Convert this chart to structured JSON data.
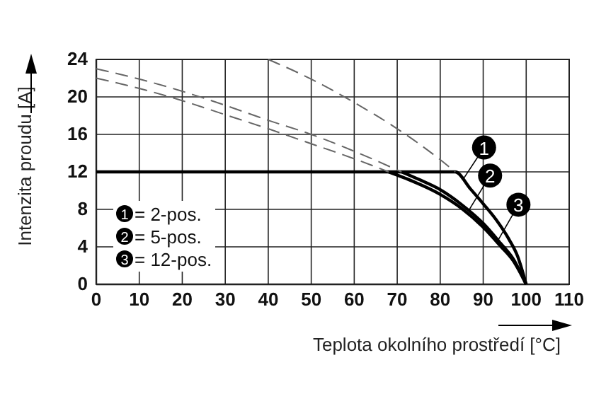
{
  "chart_data": {
    "type": "line",
    "xlabel": "Teplota okolního prostředí [°C]",
    "ylabel": "Intenzita proudu [A]",
    "xlim": [
      0,
      110
    ],
    "xticks": [
      0,
      10,
      20,
      30,
      40,
      50,
      60,
      70,
      80,
      90,
      100,
      110
    ],
    "ylim": [
      0,
      24
    ],
    "yticks": [
      0,
      4,
      8,
      12,
      16,
      20,
      24
    ],
    "grid": true,
    "legend": "bottom left",
    "series": [
      {
        "name": "= 2-pos.",
        "color": "#000000",
        "line_style": "solid",
        "x": [
          0,
          83.5,
          87,
          90,
          93,
          96,
          98,
          100
        ],
        "values": [
          12,
          12,
          10.2,
          8.6,
          6.9,
          4.8,
          3.0,
          0
        ]
      },
      {
        "name": "= 5-pos.",
        "color": "#000000",
        "line_style": "solid",
        "x": [
          71,
          75,
          80,
          85,
          90,
          94,
          97,
          100
        ],
        "values": [
          12,
          11.2,
          10.1,
          8.5,
          6.5,
          4.4,
          2.7,
          0
        ]
      },
      {
        "name": "= 12-pos.",
        "color": "#000000",
        "line_style": "solid",
        "x": [
          68,
          72,
          80,
          85,
          90,
          94,
          97,
          100
        ],
        "values": [
          12,
          11.3,
          9.6,
          8.1,
          6.1,
          4.1,
          2.5,
          0
        ]
      },
      {
        "color": "#666666",
        "line_style": "dashed",
        "x": [
          40,
          50,
          60,
          70,
          80,
          83.5
        ],
        "values": [
          24,
          21.9,
          19.4,
          16.6,
          13.3,
          12
        ]
      },
      {
        "color": "#666666",
        "line_style": "dashed",
        "x": [
          0,
          10,
          20,
          30,
          40,
          50,
          60,
          71
        ],
        "values": [
          23,
          21.9,
          20.6,
          19.1,
          17.5,
          16,
          14.2,
          12
        ]
      },
      {
        "color": "#666666",
        "line_style": "dashed",
        "x": [
          0,
          10,
          20,
          30,
          40,
          50,
          60,
          68
        ],
        "values": [
          22,
          20.9,
          19.6,
          18.1,
          16.6,
          15,
          13.4,
          12
        ]
      }
    ],
    "annotations": [
      {
        "text": "1",
        "x": 90.2,
        "y": 14.6
      },
      {
        "text": "2",
        "x": 91.6,
        "y": 11.6
      },
      {
        "text": "3",
        "x": 98.2,
        "y": 8.5
      }
    ]
  }
}
